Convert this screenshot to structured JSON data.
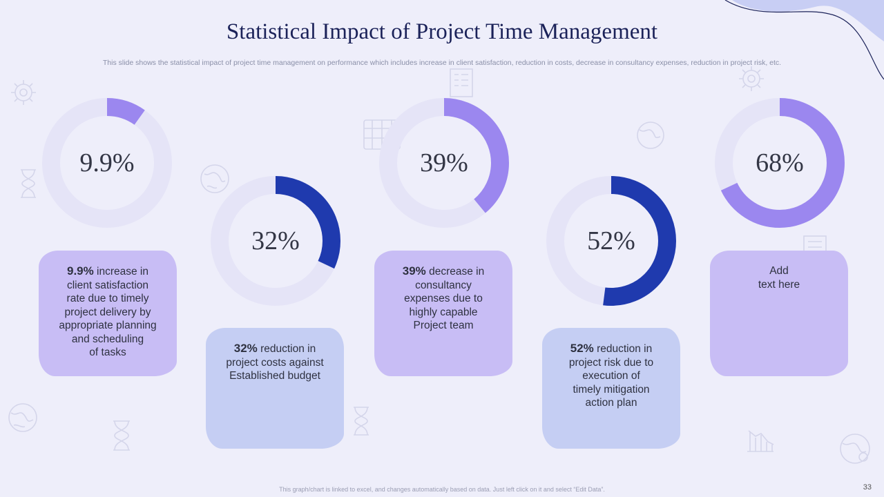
{
  "title": "Statistical Impact of Project Time Management",
  "subtitle": "This slide shows the statistical impact of project time management on performance which includes increase in client satisfaction, reduction in costs, decrease in consultancy expenses, reduction in project risk, etc.",
  "footer": "This graph/chart is linked to excel, and changes automatically based on data. Just left click on it and select “Edit Data”.",
  "page_number": "33",
  "colors": {
    "ring_light_purple": "#9b87ef",
    "ring_dark_blue": "#1f3aae",
    "track": "#e5e4f7",
    "box_purple": "#c8bdf5",
    "box_blue": "#c5cef3"
  },
  "chart_data": [
    {
      "type": "pie",
      "title": "",
      "value": 9.9,
      "label": "9.9%",
      "remainder": 90.1
    },
    {
      "type": "pie",
      "title": "",
      "value": 32,
      "label": "32%",
      "remainder": 68
    },
    {
      "type": "pie",
      "title": "",
      "value": 39,
      "label": "39%",
      "remainder": 61
    },
    {
      "type": "pie",
      "title": "",
      "value": 52,
      "label": "52%",
      "remainder": 48
    },
    {
      "type": "pie",
      "title": "",
      "value": 68,
      "label": "68%",
      "remainder": 32
    }
  ],
  "cards": [
    {
      "bold": "9.9%",
      "lines": [
        " increase in",
        "client satisfaction",
        "rate due to timely",
        "project delivery by",
        "appropriate planning",
        "and scheduling",
        "of tasks"
      ]
    },
    {
      "bold": "32%",
      "lines": [
        " reduction in",
        "project costs against",
        "Established budget"
      ]
    },
    {
      "bold": "39%",
      "lines": [
        " decrease in",
        "consultancy",
        "expenses due to",
        "highly capable",
        "Project team"
      ]
    },
    {
      "bold": "52%",
      "lines": [
        " reduction in",
        "project risk due to",
        "execution of",
        "timely mitigation",
        "action plan"
      ]
    },
    {
      "bold": "",
      "lines": [
        "Add",
        "text here"
      ]
    }
  ]
}
